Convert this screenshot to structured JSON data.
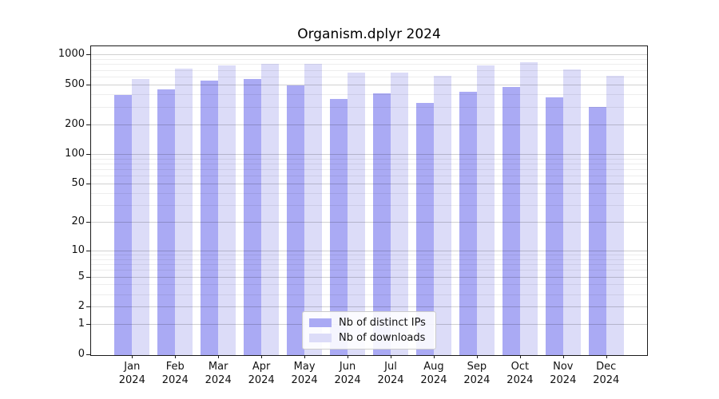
{
  "title": "Organism.dplyr 2024",
  "chart_data": {
    "type": "bar",
    "title": "Organism.dplyr 2024",
    "categories": [
      "Jan 2024",
      "Feb 2024",
      "Mar 2024",
      "Apr 2024",
      "May 2024",
      "Jun 2024",
      "Jul 2024",
      "Aug 2024",
      "Sep 2024",
      "Oct 2024",
      "Nov 2024",
      "Dec 2024"
    ],
    "series": [
      {
        "name": "Nb of distinct IPs",
        "color": "#aaaaf4",
        "values": [
          395,
          445,
          550,
          565,
          495,
          360,
          410,
          330,
          420,
          475,
          375,
          300
        ]
      },
      {
        "name": "Nb of downloads",
        "color": "#dcdcf8",
        "values": [
          570,
          720,
          775,
          800,
          805,
          655,
          665,
          610,
          780,
          840,
          710,
          610
        ]
      }
    ],
    "y_axis": {
      "scale": "log10(value+1)",
      "major_ticks": [
        0,
        1,
        2,
        5,
        10,
        20,
        50,
        100,
        200,
        500,
        1000
      ],
      "minor_ticks": [
        3,
        4,
        6,
        7,
        8,
        9,
        30,
        40,
        60,
        70,
        80,
        90,
        300,
        400,
        600,
        700,
        800,
        900
      ],
      "range": [
        0,
        1200
      ]
    },
    "grid": true,
    "legend_position": "bottom-center"
  },
  "legend": {
    "items": [
      {
        "label": "Nb of distinct IPs",
        "color": "#aaaaf4"
      },
      {
        "label": "Nb of downloads",
        "color": "#dcdcf8"
      }
    ]
  }
}
